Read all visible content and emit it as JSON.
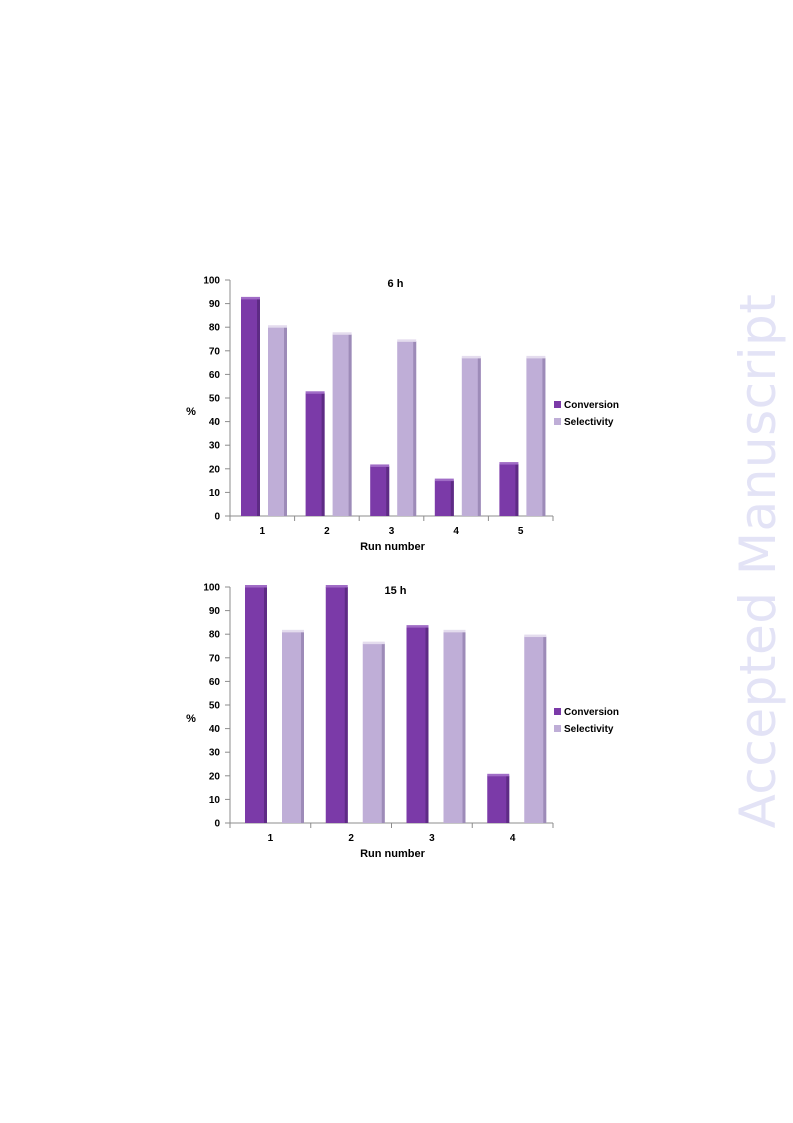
{
  "watermark": "Accepted Manuscript",
  "colors": {
    "conversion": "#7b3aa8",
    "conversion_dark": "#5e2b85",
    "conversion_light": "#a06cc6",
    "selectivity": "#bfaed7",
    "selectivity_dark": "#9d8bb8",
    "selectivity_light": "#e4dcee",
    "axis": "#8c8c8c",
    "text": "#000000"
  },
  "chart_data": [
    {
      "type": "bar",
      "title": "6 h",
      "xlabel": "Run number",
      "ylabel": "%",
      "ylim": [
        0,
        100
      ],
      "yticks": [
        "0",
        "10",
        "20",
        "30",
        "40",
        "50",
        "60",
        "70",
        "80",
        "90",
        "100"
      ],
      "grid": false,
      "legend": "right",
      "categories": [
        "1",
        "2",
        "3",
        "4",
        "5"
      ],
      "series": [
        {
          "name": "Conversion",
          "values": [
            92,
            52,
            21,
            15,
            22
          ]
        },
        {
          "name": "Selectivity",
          "values": [
            80,
            77,
            74,
            67,
            67
          ]
        }
      ]
    },
    {
      "type": "bar",
      "title": "15 h",
      "xlabel": "Run number",
      "ylabel": "%",
      "ylim": [
        0,
        100
      ],
      "yticks": [
        "0",
        "10",
        "20",
        "30",
        "40",
        "50",
        "60",
        "70",
        "80",
        "90",
        "100"
      ],
      "grid": false,
      "legend": "right",
      "categories": [
        "1",
        "2",
        "3",
        "4"
      ],
      "series": [
        {
          "name": "Conversion",
          "values": [
            100,
            100,
            83,
            20
          ]
        },
        {
          "name": "Selectivity",
          "values": [
            81,
            76,
            81,
            79
          ]
        }
      ]
    }
  ]
}
